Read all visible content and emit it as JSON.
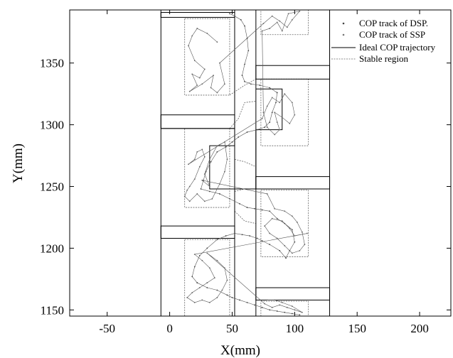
{
  "chart_data": {
    "type": "scatter",
    "xlabel": "X(mm)",
    "ylabel": "Y(mm)",
    "xlim": [
      -80,
      225
    ],
    "ylim": [
      1145,
      1393
    ],
    "xticks": [
      -50,
      0,
      50,
      100,
      150,
      200
    ],
    "yticks": [
      1150,
      1200,
      1250,
      1300,
      1350
    ],
    "xtick_labels": [
      "-50",
      "0",
      "50",
      "100",
      "150",
      "200"
    ],
    "ytick_labels": [
      "1150",
      "1200",
      "1250",
      "1300",
      "1350"
    ],
    "grid": false,
    "legend_position": "top-right",
    "legend": [
      {
        "label": "COP track of DSP.",
        "style": "dot"
      },
      {
        "label": "COP track of SSP",
        "style": "dot"
      },
      {
        "label": "Ideal COP trajectory",
        "style": "solid"
      },
      {
        "label": "Stable region",
        "style": "dashed"
      }
    ],
    "colors": {
      "track": "#555555",
      "ideal": "#000000",
      "stable": "#666666"
    },
    "foot_outlines": [
      [
        [
          -7,
          1145
        ],
        [
          -7,
          1393
        ],
        [
          52,
          1393
        ],
        [
          52,
          1145
        ],
        [
          -7,
          1145
        ]
      ],
      [
        [
          69,
          1145
        ],
        [
          69,
          1393
        ],
        [
          128,
          1393
        ],
        [
          128,
          1145
        ],
        [
          69,
          1145
        ]
      ]
    ],
    "separator_bands": [
      [
        -7,
        1387,
        52,
        1391
      ],
      [
        69,
        1337,
        128,
        1348
      ],
      [
        -7,
        1297,
        52,
        1308
      ],
      [
        69,
        1248,
        128,
        1258
      ],
      [
        -7,
        1208,
        52,
        1218
      ],
      [
        69,
        1158,
        128,
        1168
      ]
    ],
    "stable_regions": [
      [
        12,
        1324,
        48,
        1386
      ],
      [
        73,
        1373,
        111,
        1393
      ],
      [
        73,
        1283,
        111,
        1337
      ],
      [
        12,
        1233,
        48,
        1297
      ],
      [
        73,
        1193,
        111,
        1247
      ],
      [
        12,
        1145,
        48,
        1207
      ],
      [
        73,
        1145,
        111,
        1157
      ]
    ],
    "stable_transitions": [
      [
        [
          48,
          1324
        ],
        [
          60,
          1332
        ],
        [
          69,
          1337
        ]
      ],
      [
        [
          48,
          1297
        ],
        [
          55,
          1305
        ],
        [
          60,
          1318
        ],
        [
          69,
          1319
        ]
      ],
      [
        [
          52,
          1272
        ],
        [
          60,
          1270
        ],
        [
          69,
          1266
        ]
      ],
      [
        [
          52,
          1246
        ],
        [
          60,
          1248
        ],
        [
          69,
          1248
        ]
      ],
      [
        [
          52,
          1230
        ],
        [
          60,
          1222
        ],
        [
          69,
          1220
        ]
      ]
    ],
    "ideal_trajectory": [
      [
        -7,
        1297
      ],
      [
        52,
        1297
      ],
      [
        52,
        1283
      ],
      [
        32,
        1283
      ],
      [
        32,
        1248
      ],
      [
        69,
        1248
      ],
      [
        69,
        1296
      ],
      [
        90,
        1296
      ],
      [
        90,
        1329
      ],
      [
        69,
        1329
      ]
    ],
    "cop_track_dsp": [
      [
        48,
        1390
      ],
      [
        52,
        1388
      ],
      [
        57,
        1385
      ],
      [
        60,
        1380
      ],
      [
        62,
        1370
      ],
      [
        63,
        1360
      ],
      [
        60,
        1349
      ],
      [
        58,
        1340
      ],
      [
        60,
        1335
      ],
      [
        65,
        1333
      ],
      [
        72,
        1332
      ],
      [
        80,
        1330
      ],
      [
        86,
        1326
      ],
      [
        85,
        1318
      ],
      [
        82,
        1310
      ],
      [
        80,
        1302
      ],
      [
        76,
        1298
      ],
      [
        70,
        1296
      ],
      [
        62,
        1294
      ],
      [
        55,
        1290
      ],
      [
        50,
        1286
      ],
      [
        45,
        1282
      ],
      [
        38,
        1278
      ],
      [
        33,
        1270
      ],
      [
        29,
        1262
      ],
      [
        27,
        1255
      ],
      [
        25,
        1248
      ],
      [
        32,
        1246
      ],
      [
        40,
        1244
      ],
      [
        48,
        1240
      ],
      [
        56,
        1236
      ],
      [
        62,
        1233
      ],
      [
        68,
        1232
      ],
      [
        74,
        1231
      ],
      [
        80,
        1230
      ],
      [
        86,
        1224
      ],
      [
        92,
        1220
      ],
      [
        98,
        1215
      ],
      [
        100,
        1205
      ],
      [
        96,
        1198
      ],
      [
        93,
        1192
      ],
      [
        88,
        1198
      ],
      [
        80,
        1203
      ],
      [
        74,
        1206
      ],
      [
        70,
        1208
      ],
      [
        64,
        1210
      ],
      [
        58,
        1211
      ],
      [
        52,
        1212
      ],
      [
        45,
        1210
      ],
      [
        38,
        1207
      ],
      [
        30,
        1200
      ],
      [
        24,
        1194
      ],
      [
        20,
        1185
      ],
      [
        18,
        1177
      ],
      [
        22,
        1172
      ],
      [
        30,
        1168
      ],
      [
        38,
        1166
      ],
      [
        46,
        1162
      ],
      [
        50,
        1160
      ],
      [
        56,
        1158
      ],
      [
        62,
        1156
      ],
      [
        68,
        1154
      ],
      [
        74,
        1152
      ],
      [
        80,
        1150
      ],
      [
        86,
        1149
      ],
      [
        92,
        1148
      ],
      [
        98,
        1147
      ],
      [
        104,
        1146
      ]
    ],
    "cop_track_ssp": [
      [
        38,
        1367
      ],
      [
        30,
        1374
      ],
      [
        22,
        1378
      ],
      [
        18,
        1372
      ],
      [
        15,
        1364
      ],
      [
        20,
        1352
      ],
      [
        28,
        1345
      ],
      [
        24,
        1338
      ],
      [
        18,
        1341
      ],
      [
        22,
        1332
      ],
      [
        16,
        1327
      ],
      [
        26,
        1333
      ],
      [
        35,
        1340
      ],
      [
        33,
        1330
      ],
      [
        38,
        1326
      ],
      [
        44,
        1333
      ],
      [
        40,
        1350
      ],
      [
        75,
        1382
      ],
      [
        82,
        1388
      ],
      [
        88,
        1384
      ],
      [
        94,
        1379
      ],
      [
        98,
        1385
      ],
      [
        104,
        1392
      ],
      [
        95,
        1390
      ],
      [
        90,
        1376
      ],
      [
        86,
        1383
      ],
      [
        80,
        1378
      ],
      [
        74,
        1376
      ],
      [
        75,
        1310
      ],
      [
        78,
        1298
      ],
      [
        84,
        1292
      ],
      [
        88,
        1296
      ],
      [
        86,
        1302
      ],
      [
        84,
        1310
      ],
      [
        90,
        1306
      ],
      [
        96,
        1301
      ],
      [
        100,
        1308
      ],
      [
        98,
        1318
      ],
      [
        92,
        1325
      ],
      [
        88,
        1318
      ],
      [
        82,
        1322
      ],
      [
        78,
        1315
      ],
      [
        74,
        1305
      ],
      [
        15,
        1268
      ],
      [
        20,
        1272
      ],
      [
        22,
        1278
      ],
      [
        26,
        1280
      ],
      [
        28,
        1274
      ],
      [
        24,
        1266
      ],
      [
        20,
        1256
      ],
      [
        16,
        1250
      ],
      [
        14,
        1247
      ],
      [
        12,
        1242
      ],
      [
        16,
        1238
      ],
      [
        22,
        1244
      ],
      [
        28,
        1238
      ],
      [
        34,
        1240
      ],
      [
        40,
        1252
      ],
      [
        44,
        1262
      ],
      [
        46,
        1272
      ],
      [
        44,
        1286
      ],
      [
        38,
        1283
      ],
      [
        32,
        1272
      ],
      [
        28,
        1260
      ],
      [
        32,
        1250
      ],
      [
        26,
        1255
      ],
      [
        78,
        1244
      ],
      [
        84,
        1232
      ],
      [
        92,
        1230
      ],
      [
        98,
        1226
      ],
      [
        102,
        1221
      ],
      [
        106,
        1213
      ],
      [
        108,
        1203
      ],
      [
        104,
        1198
      ],
      [
        98,
        1196
      ],
      [
        92,
        1202
      ],
      [
        86,
        1208
      ],
      [
        80,
        1212
      ],
      [
        76,
        1218
      ],
      [
        82,
        1224
      ],
      [
        90,
        1222
      ],
      [
        96,
        1216
      ],
      [
        100,
        1210
      ],
      [
        110,
        1212
      ],
      [
        20,
        1195
      ],
      [
        26,
        1190
      ],
      [
        32,
        1184
      ],
      [
        36,
        1176
      ],
      [
        30,
        1172
      ],
      [
        24,
        1168
      ],
      [
        18,
        1164
      ],
      [
        14,
        1160
      ],
      [
        20,
        1156
      ],
      [
        26,
        1158
      ],
      [
        32,
        1156
      ],
      [
        38,
        1160
      ],
      [
        42,
        1166
      ],
      [
        46,
        1174
      ],
      [
        44,
        1184
      ],
      [
        38,
        1190
      ],
      [
        30,
        1196
      ],
      [
        76,
        1155
      ],
      [
        82,
        1152
      ],
      [
        88,
        1154
      ],
      [
        94,
        1152
      ],
      [
        100,
        1150
      ],
      [
        106,
        1148
      ],
      [
        98,
        1153
      ],
      [
        90,
        1156
      ],
      [
        84,
        1158
      ],
      [
        78,
        1158
      ]
    ]
  }
}
